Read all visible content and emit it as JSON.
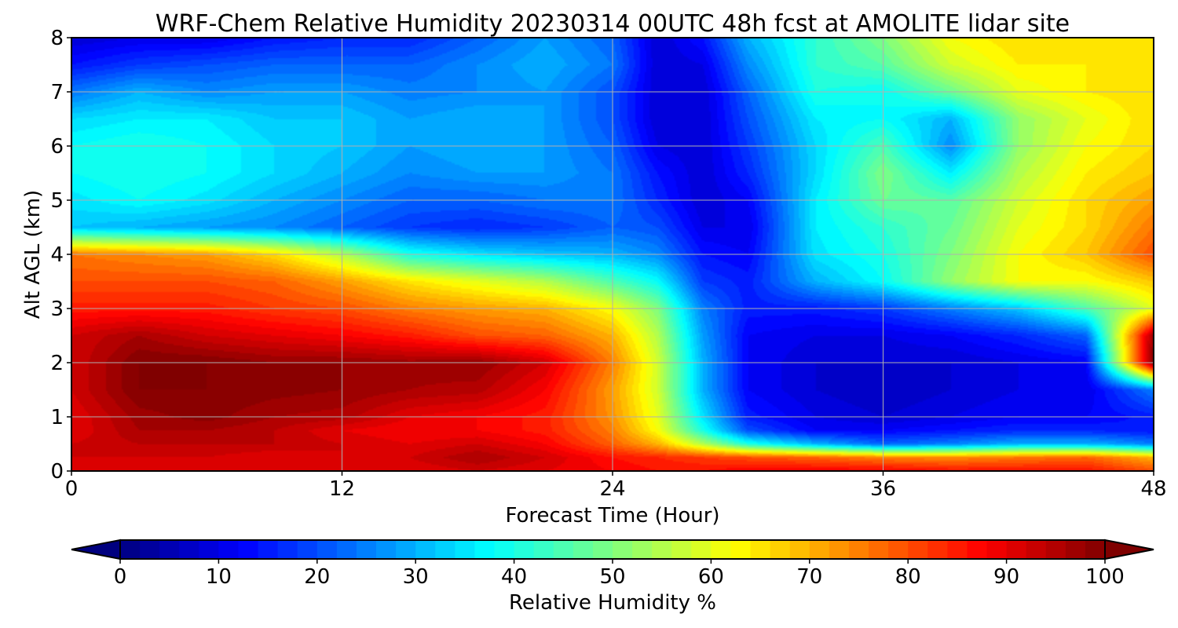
{
  "chart_data": {
    "type": "heatmap",
    "title": "WRF-Chem Relative Humidity 20230314 00UTC 48h fcst at AMOLITE lidar site",
    "xlabel": "Forecast Time (Hour)",
    "ylabel": "Alt AGL (km)",
    "xlim": [
      0,
      48
    ],
    "ylim": [
      0,
      8
    ],
    "xticks": [
      0,
      12,
      24,
      36,
      48
    ],
    "yticks": [
      0,
      1,
      2,
      3,
      4,
      5,
      6,
      7,
      8
    ],
    "grid": true,
    "colorscale": "jet",
    "colorbar": {
      "label": "Relative Humidity %",
      "min": 0,
      "max": 100,
      "ticks": [
        0,
        10,
        20,
        30,
        40,
        50,
        60,
        70,
        80,
        90,
        100
      ],
      "extend": "both",
      "orientation": "horizontal"
    },
    "x": [
      0,
      3,
      6,
      9,
      12,
      15,
      18,
      21,
      24,
      26,
      28,
      30,
      33,
      36,
      39,
      42,
      45,
      48
    ],
    "y": [
      0,
      0.25,
      0.5,
      0.75,
      1,
      1.5,
      2,
      2.5,
      3,
      3.5,
      4,
      4.5,
      5,
      5.5,
      6,
      6.5,
      7,
      7.5,
      8
    ],
    "z": [
      [
        90,
        90,
        90,
        90,
        90,
        90,
        92,
        90,
        88,
        86,
        86,
        88,
        88,
        88,
        86,
        86,
        86,
        80
      ],
      [
        92,
        92,
        92,
        90,
        92,
        92,
        96,
        92,
        86,
        84,
        82,
        80,
        78,
        75,
        74,
        76,
        78,
        70
      ],
      [
        92,
        94,
        94,
        94,
        92,
        90,
        92,
        88,
        78,
        70,
        55,
        40,
        30,
        22,
        25,
        30,
        30,
        25
      ],
      [
        90,
        96,
        96,
        94,
        90,
        88,
        88,
        85,
        75,
        62,
        40,
        20,
        12,
        12,
        14,
        16,
        16,
        14
      ],
      [
        90,
        97,
        99,
        96,
        95,
        90,
        88,
        85,
        73,
        60,
        35,
        15,
        10,
        8,
        10,
        12,
        12,
        15
      ],
      [
        92,
        100,
        100,
        99,
        98,
        96,
        95,
        88,
        72,
        58,
        30,
        12,
        8,
        6,
        8,
        10,
        10,
        25
      ],
      [
        92,
        100,
        100,
        98,
        98,
        97,
        98,
        92,
        75,
        58,
        30,
        12,
        8,
        8,
        8,
        10,
        12,
        100
      ],
      [
        92,
        96,
        92,
        90,
        88,
        85,
        80,
        78,
        70,
        55,
        28,
        12,
        10,
        10,
        12,
        16,
        22,
        98
      ],
      [
        85,
        85,
        85,
        82,
        80,
        75,
        72,
        70,
        62,
        50,
        25,
        15,
        15,
        18,
        25,
        32,
        45,
        60
      ],
      [
        80,
        80,
        80,
        78,
        72,
        65,
        60,
        55,
        45,
        38,
        18,
        15,
        30,
        38,
        52,
        62,
        62,
        68
      ],
      [
        76,
        74,
        72,
        66,
        55,
        40,
        35,
        32,
        30,
        26,
        14,
        12,
        35,
        40,
        50,
        62,
        68,
        80
      ],
      [
        32,
        30,
        28,
        26,
        22,
        18,
        16,
        18,
        22,
        20,
        10,
        10,
        36,
        42,
        48,
        60,
        66,
        76
      ],
      [
        35,
        38,
        35,
        30,
        26,
        22,
        22,
        24,
        24,
        16,
        8,
        12,
        36,
        48,
        46,
        58,
        66,
        72
      ],
      [
        38,
        40,
        38,
        34,
        30,
        26,
        28,
        28,
        24,
        14,
        8,
        16,
        34,
        50,
        36,
        55,
        64,
        68
      ],
      [
        38,
        40,
        38,
        34,
        32,
        28,
        30,
        28,
        22,
        10,
        8,
        18,
        34,
        45,
        26,
        52,
        62,
        66
      ],
      [
        34,
        36,
        36,
        32,
        32,
        28,
        30,
        28,
        20,
        8,
        8,
        20,
        36,
        38,
        30,
        52,
        60,
        66
      ],
      [
        24,
        30,
        26,
        28,
        28,
        25,
        26,
        28,
        20,
        8,
        8,
        22,
        40,
        38,
        48,
        60,
        64,
        66
      ],
      [
        14,
        18,
        20,
        22,
        22,
        22,
        26,
        30,
        24,
        8,
        10,
        26,
        42,
        46,
        58,
        64,
        64,
        64
      ],
      [
        8,
        10,
        10,
        14,
        16,
        16,
        22,
        28,
        22,
        8,
        14,
        30,
        42,
        50,
        62,
        66,
        64,
        64
      ]
    ]
  }
}
